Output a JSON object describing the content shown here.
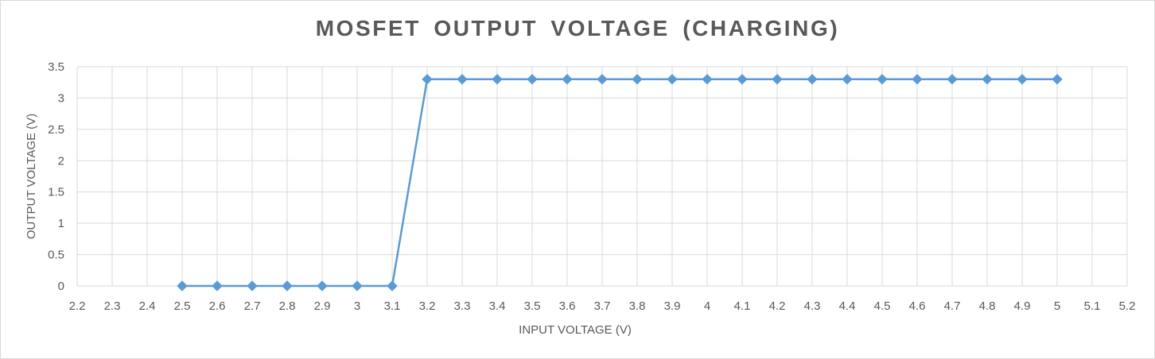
{
  "chart_data": {
    "type": "line",
    "title": "MOSFET OUTPUT VOLTAGE (CHARGING)",
    "xlabel": "INPUT VOLTAGE (V)",
    "ylabel": "OUTPUT VOLTAGE (V)",
    "xlim": [
      2.2,
      5.2
    ],
    "ylim": [
      0,
      3.5
    ],
    "x_ticks": [
      "2.2",
      "2.3",
      "2.4",
      "2.5",
      "2.6",
      "2.7",
      "2.8",
      "2.9",
      "3",
      "3.1",
      "3.2",
      "3.3",
      "3.4",
      "3.5",
      "3.6",
      "3.7",
      "3.8",
      "3.9",
      "4",
      "4.1",
      "4.2",
      "4.3",
      "4.4",
      "4.5",
      "4.6",
      "4.7",
      "4.8",
      "4.9",
      "5",
      "5.1",
      "5.2"
    ],
    "y_ticks": [
      "0",
      "0.5",
      "1",
      "1.5",
      "2",
      "2.5",
      "3",
      "3.5"
    ],
    "grid": true,
    "legend": "none",
    "series": [
      {
        "color": "#5b9bd5",
        "marker": "diamond",
        "x": [
          2.5,
          2.6,
          2.7,
          2.8,
          2.9,
          3.0,
          3.1,
          3.2,
          3.3,
          3.4,
          3.5,
          3.6,
          3.7,
          3.8,
          3.9,
          4.0,
          4.1,
          4.2,
          4.3,
          4.4,
          4.5,
          4.6,
          4.7,
          4.8,
          4.9,
          5.0
        ],
        "y": [
          0,
          0,
          0,
          0,
          0,
          0,
          0,
          3.3,
          3.3,
          3.3,
          3.3,
          3.3,
          3.3,
          3.3,
          3.3,
          3.3,
          3.3,
          3.3,
          3.3,
          3.3,
          3.3,
          3.3,
          3.3,
          3.3,
          3.3,
          3.3
        ]
      }
    ]
  },
  "colors": {
    "gridline": "#d9d9d9",
    "text": "#595959",
    "series": "#5b9bd5"
  }
}
